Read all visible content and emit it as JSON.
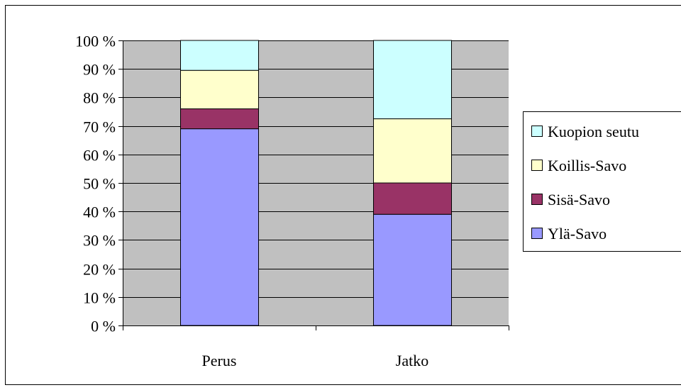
{
  "chart_data": {
    "type": "bar",
    "stacked": true,
    "percent": true,
    "categories": [
      "Perus",
      "Jatko"
    ],
    "series": [
      {
        "name": "Ylä-Savo",
        "values": [
          69,
          39
        ],
        "color": "#9999ff"
      },
      {
        "name": "Sisä-Savo",
        "values": [
          7,
          11
        ],
        "color": "#993366"
      },
      {
        "name": "Koillis-Savo",
        "values": [
          13.5,
          22.5
        ],
        "color": "#ffffcc"
      },
      {
        "name": "Kuopion seutu",
        "values": [
          10.5,
          27.5
        ],
        "color": "#ccffff"
      }
    ],
    "y_ticks": [
      "0 %",
      "10 %",
      "20 %",
      "30 %",
      "40 %",
      "50 %",
      "60 %",
      "70 %",
      "80 %",
      "90 %",
      "100 %"
    ],
    "ylim": [
      0,
      100
    ],
    "title": "",
    "xlabel": "",
    "ylabel": "",
    "grid": true,
    "legend_position": "right",
    "legend_order": [
      "Kuopion seutu",
      "Koillis-Savo",
      "Sisä-Savo",
      "Ylä-Savo"
    ],
    "plot_background": "#c0c0c0"
  }
}
